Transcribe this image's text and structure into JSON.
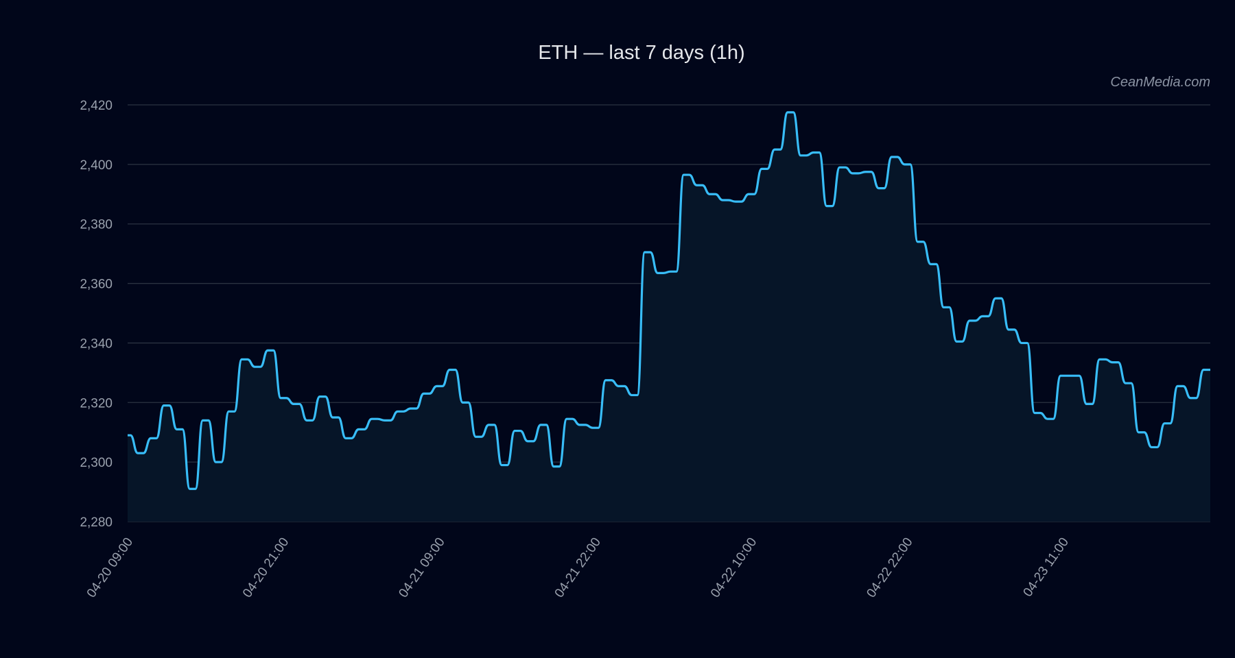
{
  "chart_data": {
    "type": "line",
    "title": "ETH — last 7 days (1h)",
    "watermark": "CeanMedia.com",
    "xlabel": "",
    "ylabel": "",
    "ylim": [
      2280,
      2420
    ],
    "yticks": [
      2280,
      2300,
      2320,
      2340,
      2360,
      2380,
      2400,
      2420
    ],
    "ytick_labels": [
      "2,280",
      "2,300",
      "2,320",
      "2,340",
      "2,360",
      "2,380",
      "2,400",
      "2,420"
    ],
    "xticks": [
      {
        "index": 0,
        "label": "04-20 09:00"
      },
      {
        "index": 12,
        "label": "04-20 21:00"
      },
      {
        "index": 24,
        "label": "04-21 09:00"
      },
      {
        "index": 36,
        "label": "04-21 22:00"
      },
      {
        "index": 48,
        "label": "04-22 10:00"
      },
      {
        "index": 60,
        "label": "04-22 22:00"
      },
      {
        "index": 72,
        "label": "04-23 11:00"
      }
    ],
    "grid": true,
    "area_fill": true,
    "colors": {
      "line": "#38bdf8",
      "fill": "#061528",
      "background": "#01061a",
      "grid": "#2b3342"
    },
    "series": [
      {
        "name": "ETH",
        "values": [
          2309,
          2303,
          2308,
          2319,
          2311,
          2291,
          2314,
          2300,
          2317,
          2334.5,
          2332,
          2337.5,
          2321.5,
          2319.5,
          2314,
          2322,
          2315,
          2308,
          2311,
          2314.5,
          2314,
          2317,
          2318,
          2323,
          2325.5,
          2331,
          2320,
          2308.5,
          2312.5,
          2299,
          2310.5,
          2307,
          2312.5,
          2298.5,
          2314.5,
          2312.5,
          2311.5,
          2327.5,
          2325.5,
          2322.5,
          2370.5,
          2363.5,
          2364,
          2396.5,
          2393,
          2390,
          2388,
          2387.5,
          2390,
          2398.5,
          2405,
          2417.5,
          2403,
          2404,
          2386,
          2399,
          2397,
          2397.5,
          2392,
          2402.5,
          2400,
          2374,
          2366.5,
          2352,
          2340.5,
          2347.5,
          2349,
          2355,
          2344.5,
          2340,
          2316.5,
          2314.5,
          2329,
          2329,
          2319.5,
          2334.5,
          2333.5,
          2326.5,
          2310,
          2305,
          2313,
          2325.5,
          2321.5,
          2331
        ]
      }
    ]
  }
}
